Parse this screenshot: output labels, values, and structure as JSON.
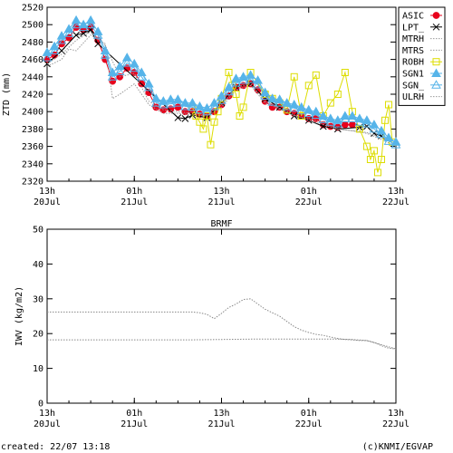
{
  "footer": {
    "created": "created: 22/07 13:18",
    "credit": "(c)KNMI/EGVAP"
  },
  "chart_data": [
    {
      "type": "line",
      "ylabel": "ZTD (mm)",
      "xlabel": "",
      "ylim": [
        2320,
        2520
      ],
      "yticks": [
        2320,
        2340,
        2360,
        2380,
        2400,
        2420,
        2440,
        2460,
        2480,
        2500,
        2520
      ],
      "xlim": [
        0,
        48
      ],
      "x_units": "hours since 20Jul 13h",
      "xticks": [
        {
          "x": 0,
          "l1": "13h",
          "l2": "20Jul"
        },
        {
          "x": 12,
          "l1": "01h",
          "l2": "21Jul"
        },
        {
          "x": 24,
          "l1": "13h",
          "l2": "21Jul"
        },
        {
          "x": 36,
          "l1": "01h",
          "l2": "22Jul"
        },
        {
          "x": 48,
          "l1": "13h",
          "l2": "22Jul"
        }
      ],
      "legend_position": "right",
      "series": [
        {
          "name": "ASIC",
          "color": "#e8001c",
          "marker": "filled-circle",
          "x": [
            0,
            1,
            2,
            3,
            4,
            5,
            6,
            7,
            8,
            9,
            10,
            11,
            12,
            13,
            14,
            15,
            16,
            17,
            18,
            19,
            20,
            21,
            22,
            23,
            24,
            25,
            26,
            27,
            28,
            29,
            30,
            31,
            32,
            33,
            34,
            35,
            36,
            37,
            38,
            39,
            40,
            41,
            42
          ],
          "values": [
            2460,
            2465,
            2478,
            2485,
            2497,
            2494,
            2497,
            2482,
            2460,
            2435,
            2440,
            2450,
            2445,
            2432,
            2422,
            2405,
            2402,
            2403,
            2405,
            2400,
            2400,
            2397,
            2395,
            2400,
            2408,
            2418,
            2428,
            2430,
            2432,
            2425,
            2412,
            2405,
            2405,
            2400,
            2398,
            2395,
            2392,
            2392,
            2385,
            2383,
            2382,
            2385,
            2385
          ]
        },
        {
          "name": "LPT_",
          "color": "#000000",
          "marker": "x",
          "x": [
            0,
            2,
            4,
            5,
            6,
            7,
            18,
            19,
            20,
            22,
            24,
            26,
            28,
            30,
            32,
            34,
            36,
            38,
            40,
            43,
            44,
            45,
            46
          ],
          "values": [
            2455,
            2470,
            2488,
            2490,
            2494,
            2478,
            2393,
            2392,
            2396,
            2393,
            2410,
            2428,
            2432,
            2415,
            2405,
            2395,
            2390,
            2383,
            2380,
            2382,
            2383,
            2375,
            2372
          ]
        },
        {
          "name": "MTRH",
          "color": "#999999",
          "marker": "dotted-line",
          "x": [
            0,
            2,
            3,
            4,
            6,
            8,
            9,
            10,
            12,
            14,
            16,
            18,
            20,
            22,
            24,
            26,
            28,
            30,
            32,
            34,
            36,
            38,
            40,
            42,
            44,
            46,
            48
          ],
          "values": [
            2452,
            2460,
            2472,
            2470,
            2488,
            2478,
            2415,
            2420,
            2432,
            2408,
            2398,
            2398,
            2396,
            2395,
            2405,
            2425,
            2430,
            2410,
            2403,
            2395,
            2392,
            2388,
            2380,
            2378,
            2376,
            2370,
            2362
          ]
        },
        {
          "name": "MTRS",
          "color": "#999999",
          "marker": "dotted-line",
          "x": [
            0,
            2,
            4,
            6,
            8,
            10,
            12,
            14,
            16,
            18,
            20,
            22,
            24,
            26,
            28,
            30,
            32,
            34,
            36,
            38,
            40,
            42,
            44,
            46,
            48
          ],
          "values": [
            2455,
            2466,
            2482,
            2492,
            2476,
            2440,
            2444,
            2412,
            2402,
            2400,
            2398,
            2397,
            2408,
            2428,
            2432,
            2412,
            2404,
            2396,
            2390,
            2385,
            2380,
            2378,
            2375,
            2368,
            2360
          ]
        },
        {
          "name": "ROBH",
          "color": "#dddd00",
          "marker": "open-square",
          "x": [
            20,
            20.5,
            21,
            21.5,
            22,
            22.5,
            23,
            23.5,
            24,
            25,
            25.5,
            26,
            26.5,
            27,
            28,
            30,
            31,
            32,
            33,
            34,
            35,
            36,
            37,
            38,
            39,
            40,
            41,
            42,
            43,
            44,
            44.5,
            45,
            45.5,
            46,
            46.5,
            47,
            47.5
          ],
          "values": [
            2405,
            2395,
            2388,
            2380,
            2395,
            2362,
            2388,
            2400,
            2415,
            2445,
            2430,
            2420,
            2395,
            2405,
            2445,
            2420,
            2415,
            2410,
            2402,
            2440,
            2395,
            2430,
            2442,
            2395,
            2410,
            2420,
            2445,
            2400,
            2380,
            2360,
            2345,
            2355,
            2330,
            2345,
            2390,
            2408,
            2365
          ]
        },
        {
          "name": "SGN1",
          "color": "#56b4e9",
          "marker": "filled-triangle",
          "x": [
            0,
            1,
            2,
            3,
            4,
            5,
            6,
            7,
            8,
            9,
            10,
            11,
            12,
            13,
            14,
            15,
            16,
            17,
            18,
            19,
            20,
            21,
            22,
            23,
            24,
            25,
            26,
            27,
            28,
            29,
            30,
            31,
            32,
            33,
            34,
            35,
            36,
            37,
            38,
            39,
            40,
            41,
            42,
            43,
            44,
            45,
            46,
            47,
            48
          ],
          "values": [
            2468,
            2475,
            2487,
            2495,
            2505,
            2500,
            2505,
            2492,
            2470,
            2445,
            2452,
            2462,
            2455,
            2445,
            2432,
            2415,
            2412,
            2414,
            2414,
            2410,
            2410,
            2406,
            2404,
            2410,
            2418,
            2428,
            2438,
            2440,
            2442,
            2436,
            2422,
            2415,
            2414,
            2410,
            2408,
            2405,
            2402,
            2400,
            2395,
            2392,
            2390,
            2395,
            2395,
            2392,
            2390,
            2385,
            2378,
            2370,
            2365
          ]
        },
        {
          "name": "SGN_",
          "color": "#56b4e9",
          "marker": "open-triangle",
          "x": [
            0,
            1,
            2,
            3,
            4,
            5,
            6,
            7,
            8,
            9,
            10,
            11,
            12,
            13,
            14,
            15,
            16,
            17,
            18,
            19,
            20,
            21,
            22,
            23,
            24,
            25,
            26,
            27,
            28,
            29,
            30,
            31,
            32,
            33,
            34,
            35,
            36,
            37,
            38,
            39,
            40,
            41,
            42,
            43,
            44,
            45,
            46,
            47,
            48
          ],
          "values": [
            2462,
            2470,
            2482,
            2490,
            2500,
            2497,
            2500,
            2488,
            2465,
            2440,
            2446,
            2456,
            2450,
            2440,
            2428,
            2410,
            2408,
            2409,
            2410,
            2406,
            2405,
            2402,
            2400,
            2406,
            2413,
            2423,
            2433,
            2436,
            2437,
            2431,
            2418,
            2411,
            2410,
            2406,
            2404,
            2401,
            2398,
            2396,
            2391,
            2388,
            2386,
            2392,
            2392,
            2388,
            2386,
            2380,
            2374,
            2366,
            2362
          ]
        },
        {
          "name": "ULRH",
          "color": "#999999",
          "marker": "dotted-line",
          "x": [],
          "values": []
        }
      ]
    },
    {
      "type": "line",
      "title": "BRMF",
      "ylabel": "IWV (kg/m2)",
      "xlabel": "",
      "ylim": [
        0,
        50
      ],
      "yticks": [
        0,
        10,
        20,
        30,
        40,
        50
      ],
      "xlim": [
        0,
        48
      ],
      "x_units": "hours since 20Jul 13h",
      "xticks": [
        {
          "x": 0,
          "l1": "13h",
          "l2": "20Jul"
        },
        {
          "x": 12,
          "l1": "01h",
          "l2": "21Jul"
        },
        {
          "x": 24,
          "l1": "13h",
          "l2": "21Jul"
        },
        {
          "x": 36,
          "l1": "01h",
          "l2": "22Jul"
        },
        {
          "x": 48,
          "l1": "13h",
          "l2": "22Jul"
        }
      ],
      "series": [
        {
          "name": "",
          "color": "#888888",
          "marker": "dotted-line",
          "x": [
            0,
            2,
            4,
            6,
            8,
            10,
            12,
            14,
            16,
            18,
            20,
            21,
            22,
            23,
            24,
            25,
            26,
            27,
            28,
            29,
            30,
            31,
            32,
            33,
            34,
            35,
            36,
            37,
            38,
            39,
            40,
            41,
            42,
            43,
            44,
            45,
            46,
            47,
            48
          ],
          "values": [
            26.2,
            26.2,
            26.2,
            26.2,
            26.2,
            26.2,
            26.2,
            26.2,
            26.2,
            26.2,
            26.2,
            26.0,
            25.5,
            24.3,
            25.8,
            27.5,
            28.5,
            29.8,
            30.0,
            28.5,
            27.0,
            26.0,
            25.0,
            23.5,
            22.0,
            21.0,
            20.3,
            19.8,
            19.5,
            19.0,
            18.6,
            18.3,
            18.2,
            18.0,
            18.0,
            17.5,
            16.5,
            15.8,
            15.6
          ]
        },
        {
          "name": "",
          "color": "#888888",
          "marker": "dotted-line",
          "x": [
            0,
            4,
            8,
            12,
            16,
            20,
            24,
            28,
            32,
            36,
            40,
            42,
            44,
            46,
            48
          ],
          "values": [
            18.2,
            18.2,
            18.2,
            18.2,
            18.2,
            18.2,
            18.3,
            18.4,
            18.4,
            18.4,
            18.4,
            18.3,
            18.0,
            16.8,
            15.6
          ]
        }
      ]
    }
  ]
}
